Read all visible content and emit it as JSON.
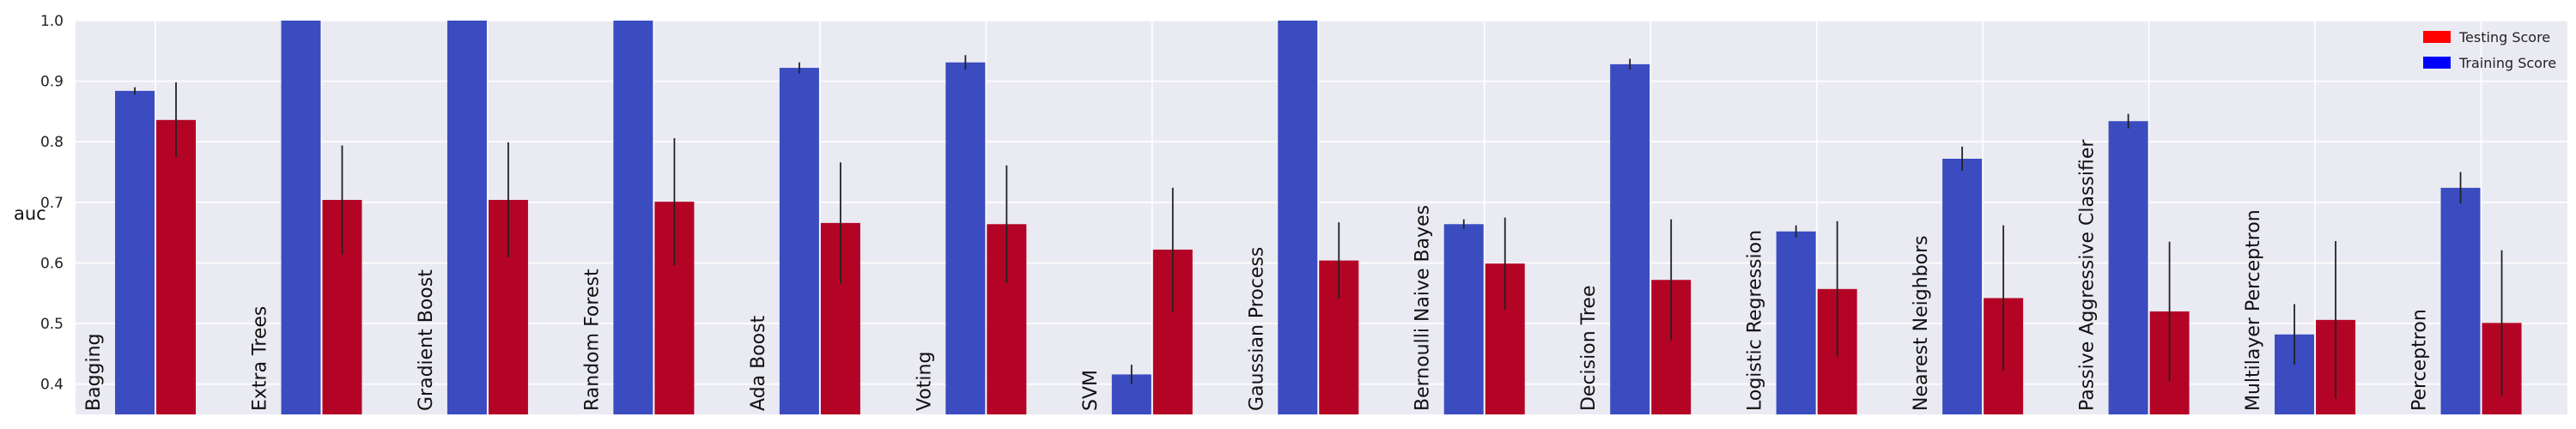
{
  "chart_data": {
    "type": "bar",
    "title": "",
    "xlabel": "",
    "ylabel": "auc",
    "ylim": [
      0.35,
      1.0
    ],
    "yticks": [
      0.4,
      0.5,
      0.6,
      0.7,
      0.8,
      0.9,
      1.0
    ],
    "ytick_labels": [
      "0.4",
      "0.5",
      "0.6",
      "0.7",
      "0.8",
      "0.9",
      "1.0"
    ],
    "grid": true,
    "legend_position": "top-right",
    "categories": [
      "Bagging",
      "Extra Trees",
      "Gradient Boost",
      "Random Forest",
      "Ada Boost",
      "Voting",
      "SVM",
      "Gaussian Process",
      "Bernoulli Naive Bayes",
      "Decision Tree",
      "Logistic Regression",
      "Nearest Neighbors",
      "Passive Aggressive Classifier",
      "Multilayer Perceptron",
      "Perceptron"
    ],
    "series": [
      {
        "name": "Training Score",
        "color": "#3a4cc0",
        "values": [
          0.884,
          1.0,
          1.0,
          1.0,
          0.922,
          0.931,
          0.416,
          1.0,
          0.664,
          0.928,
          0.652,
          0.772,
          0.834,
          0.482,
          0.724
        ],
        "errors": [
          0.006,
          0.0,
          0.0,
          0.0,
          0.009,
          0.012,
          0.016,
          0.0,
          0.008,
          0.009,
          0.01,
          0.02,
          0.012,
          0.05,
          0.026
        ]
      },
      {
        "name": "Testing Score",
        "color": "#b40426",
        "values": [
          0.836,
          0.704,
          0.704,
          0.701,
          0.666,
          0.664,
          0.622,
          0.604,
          0.599,
          0.572,
          0.557,
          0.542,
          0.52,
          0.506,
          0.501
        ],
        "errors": [
          0.062,
          0.09,
          0.095,
          0.105,
          0.1,
          0.097,
          0.102,
          0.063,
          0.076,
          0.1,
          0.112,
          0.12,
          0.115,
          0.13,
          0.12
        ]
      }
    ],
    "legend_order": [
      "Testing Score",
      "Training Score"
    ]
  }
}
